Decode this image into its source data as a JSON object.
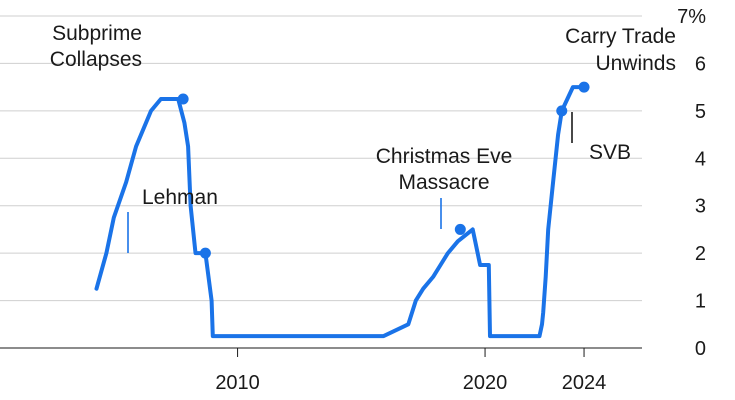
{
  "chart_data": {
    "type": "line",
    "title": "",
    "xlabel": "",
    "ylabel": "",
    "xlim": [
      2000.4,
      2030.1
    ],
    "ylim": [
      0,
      7
    ],
    "y_axis_position": "right",
    "grid": true,
    "y_ticks": [
      {
        "value": 0,
        "label": "0"
      },
      {
        "value": 1,
        "label": "1"
      },
      {
        "value": 2,
        "label": "2"
      },
      {
        "value": 3,
        "label": "3"
      },
      {
        "value": 4,
        "label": "4"
      },
      {
        "value": 5,
        "label": "5"
      },
      {
        "value": 6,
        "label": "6"
      },
      {
        "value": 7,
        "label": "7%"
      }
    ],
    "x_ticks": [
      {
        "value": 2010,
        "label": "2010"
      },
      {
        "value": 2020,
        "label": "2020"
      },
      {
        "value": 2024,
        "label": "2024"
      }
    ],
    "series": [
      {
        "color": "#1a73e8",
        "x": [
          2004.3,
          2004.7,
          2005.0,
          2005.5,
          2005.9,
          2006.5,
          2006.9,
          2007.6,
          2007.85,
          2008.0,
          2008.1,
          2008.3,
          2008.7,
          2008.95,
          2009.0,
          2015.9,
          2016.9,
          2017.2,
          2017.5,
          2017.9,
          2018.2,
          2018.5,
          2018.9,
          2019.5,
          2019.6,
          2019.8,
          2020.15,
          2020.2,
          2022.2,
          2022.3,
          2022.35,
          2022.45,
          2022.55,
          2022.75,
          2022.95,
          2023.1,
          2023.55,
          2024.0
        ],
        "y": [
          1.25,
          2.0,
          2.75,
          3.5,
          4.25,
          5.0,
          5.25,
          5.25,
          4.75,
          4.25,
          3.0,
          2.0,
          2.0,
          1.0,
          0.25,
          0.25,
          0.5,
          1.0,
          1.25,
          1.5,
          1.75,
          2.0,
          2.25,
          2.5,
          2.25,
          1.75,
          1.75,
          0.25,
          0.25,
          0.5,
          0.75,
          1.5,
          2.5,
          3.5,
          4.5,
          5.0,
          5.5,
          5.5
        ]
      }
    ],
    "annotations": [
      {
        "text": [
          "Subprime",
          "Collapses"
        ],
        "x": 2007.8,
        "y": 5.25,
        "anchor": "end"
      },
      {
        "text": [
          "Lehman"
        ],
        "x": 2008.7,
        "y": 2.0,
        "anchor": "start"
      },
      {
        "text": [
          "Christmas Eve",
          "Massacre"
        ],
        "x": 2019.0,
        "y": 2.5,
        "anchor": "middle"
      },
      {
        "text": [
          "SVB"
        ],
        "x": 2023.1,
        "y": 5.0,
        "anchor": "start"
      },
      {
        "text": [
          "Carry Trade",
          "Unwinds"
        ],
        "x": 2024.0,
        "y": 5.5,
        "anchor": "end"
      }
    ]
  }
}
